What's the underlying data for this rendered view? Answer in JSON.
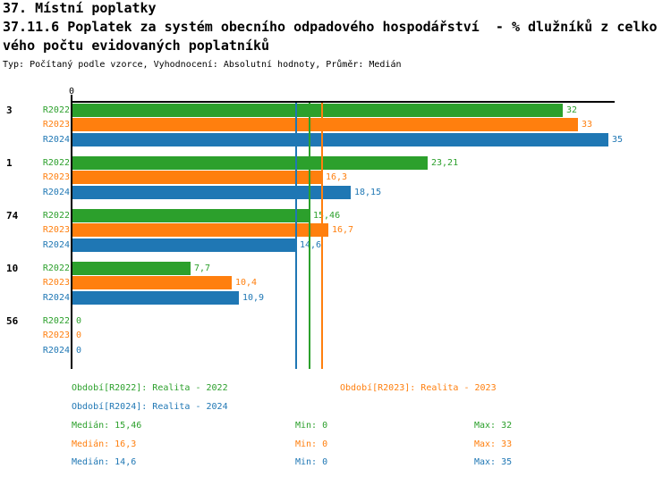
{
  "header": {
    "title1": "37. Místní poplatky",
    "title2_line1": "37.11.6 Poplatek za systém obecního odpadového hospodářství  - % dlužníků z celko",
    "title2_line2": "vého počtu evidovaných poplatníků",
    "meta": "Typ: Počítaný podle vzorce, Vyhodnocení: Absolutní hodnoty, Průměr: Medián"
  },
  "chart_data": {
    "type": "bar",
    "orientation": "horizontal",
    "grid": false,
    "categories": [
      "3",
      "1",
      "74",
      "10",
      "56"
    ],
    "x_axis": {
      "zero_label": "0",
      "xlim": [
        0,
        35.3
      ]
    },
    "series": [
      {
        "name": "R2022",
        "color": "#2ca02c",
        "values": [
          32,
          23.21,
          15.46,
          7.7,
          0
        ],
        "value_labels": [
          "32",
          "23,21",
          "15,46",
          "7,7",
          "0"
        ],
        "median": 15.46,
        "median_label": "15,46",
        "min_label": "0",
        "max_label": "32",
        "legend_label": "Období[R2022]: Realita - 2022"
      },
      {
        "name": "R2023",
        "color": "#ff7f0e",
        "values": [
          33,
          16.3,
          16.7,
          10.4,
          0
        ],
        "value_labels": [
          "33",
          "16,3",
          "16,7",
          "10,4",
          "0"
        ],
        "median": 16.3,
        "median_label": "16,3",
        "min_label": "0",
        "max_label": "33",
        "legend_label": "Období[R2023]: Realita - 2023"
      },
      {
        "name": "R2024",
        "color": "#1f77b4",
        "values": [
          35,
          18.15,
          14.6,
          10.9,
          0
        ],
        "value_labels": [
          "35",
          "18,15",
          "14,6",
          "10,9",
          "0"
        ],
        "median": 14.6,
        "median_label": "14,6",
        "min_label": "0",
        "max_label": "35",
        "legend_label": "Období[R2024]: Realita - 2024"
      }
    ],
    "stats_labels": {
      "median": "Medián: ",
      "min": "Min: ",
      "max": "Max: "
    }
  }
}
